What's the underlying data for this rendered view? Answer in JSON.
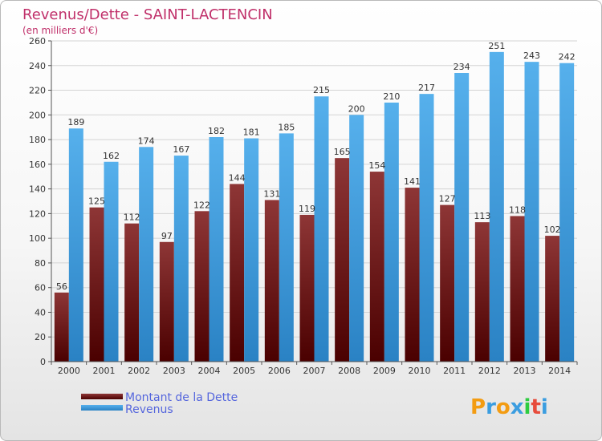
{
  "chart_data": {
    "type": "bar",
    "title": "Revenus/Dette - SAINT-LACTENCIN",
    "subtitle": "(en milliers d'€)",
    "categories": [
      "2000",
      "2001",
      "2002",
      "2003",
      "2004",
      "2005",
      "2006",
      "2007",
      "2008",
      "2009",
      "2010",
      "2011",
      "2012",
      "2013",
      "2014"
    ],
    "series": [
      {
        "name": "Montant de la Dette",
        "color": "#7a2020",
        "values": [
          56,
          125,
          112,
          97,
          122,
          144,
          131,
          119,
          165,
          154,
          141,
          127,
          113,
          118,
          102
        ]
      },
      {
        "name": "Revenus",
        "color": "#3b9de0",
        "values": [
          189,
          162,
          174,
          167,
          182,
          181,
          185,
          215,
          200,
          210,
          217,
          234,
          251,
          243,
          242
        ]
      }
    ],
    "ylim": [
      0,
      260
    ],
    "yticks": [
      0,
      20,
      40,
      60,
      80,
      100,
      120,
      140,
      160,
      180,
      200,
      220,
      240,
      260
    ],
    "grid": true,
    "legend": "bottom-left"
  },
  "logo": {
    "text": "Proxiti",
    "letters": [
      "P",
      "r",
      "o",
      "x",
      "i",
      "t",
      "i"
    ],
    "colors": [
      "#f39c12",
      "#3b9de0",
      "#f39c12",
      "#3b9de0",
      "#2ecc40",
      "#e74c3c",
      "#3b9de0"
    ]
  }
}
